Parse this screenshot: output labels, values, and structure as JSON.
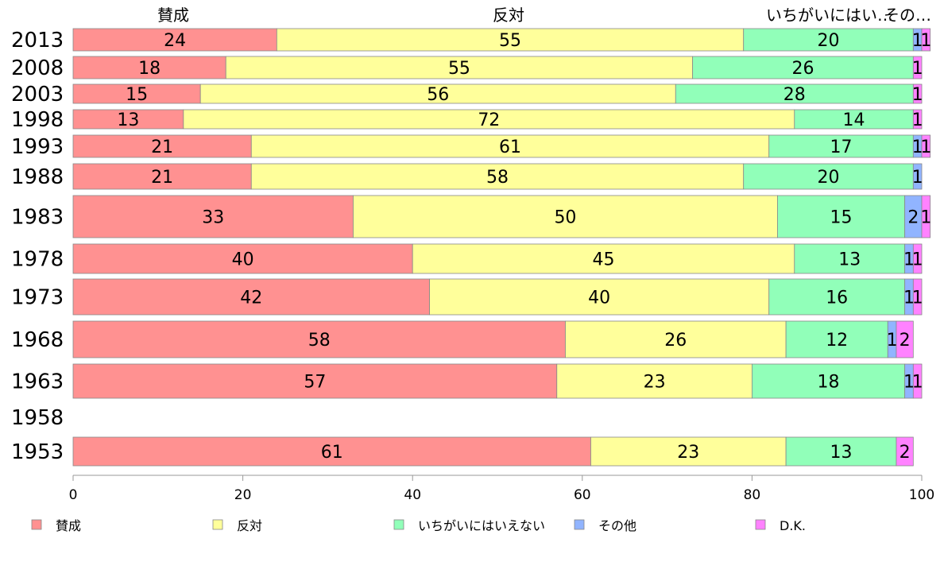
{
  "chart_data": {
    "type": "bar",
    "orientation": "horizontal",
    "stacked": true,
    "categories": [
      "2013",
      "2008",
      "2003",
      "1998",
      "1993",
      "1988",
      "1983",
      "1978",
      "1973",
      "1968",
      "1963",
      "1958",
      "1953"
    ],
    "series": [
      {
        "name": "賛成",
        "color": "#ff9191",
        "values": [
          24,
          18,
          15,
          13,
          21,
          21,
          33,
          40,
          42,
          58,
          57,
          null,
          61
        ]
      },
      {
        "name": "反対",
        "color": "#ffff9b",
        "values": [
          55,
          55,
          56,
          72,
          61,
          58,
          50,
          45,
          40,
          26,
          23,
          null,
          23
        ]
      },
      {
        "name": "いちがいにはいえない",
        "color": "#91ffb9",
        "values": [
          20,
          26,
          28,
          14,
          17,
          20,
          15,
          13,
          16,
          12,
          18,
          null,
          13
        ]
      },
      {
        "name": "その他",
        "color": "#91b4ff",
        "values": [
          1,
          0,
          0,
          0,
          1,
          1,
          2,
          1,
          1,
          1,
          1,
          null,
          0
        ]
      },
      {
        "name": "D.K.",
        "color": "#ff82ff",
        "values": [
          1,
          1,
          1,
          1,
          1,
          0,
          1,
          1,
          1,
          2,
          1,
          null,
          2
        ]
      }
    ],
    "column_headers": [
      "賛成",
      "反対",
      "いちがいにはい…",
      "その…"
    ],
    "xlim": [
      0,
      100
    ],
    "xticks": [
      0,
      20,
      40,
      60,
      80,
      100
    ],
    "legend_position": "bottom",
    "grid": false
  }
}
